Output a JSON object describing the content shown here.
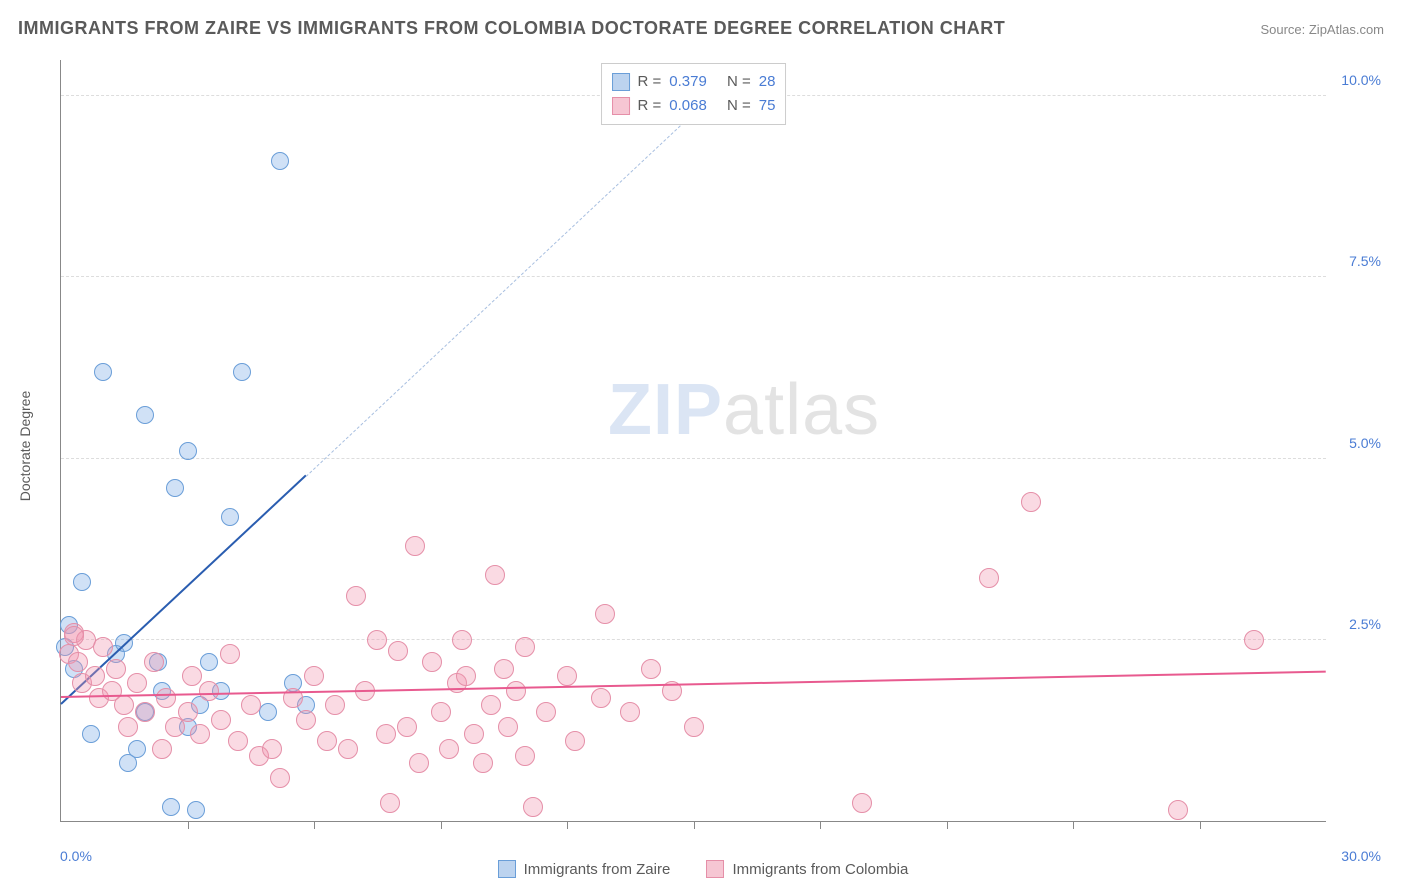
{
  "title": "IMMIGRANTS FROM ZAIRE VS IMMIGRANTS FROM COLOMBIA DOCTORATE DEGREE CORRELATION CHART",
  "source_label": "Source: ZipAtlas.com",
  "watermark": {
    "prefix": "ZIP",
    "suffix": "atlas"
  },
  "y_axis": {
    "label": "Doctorate Degree",
    "min": 0.0,
    "max": 10.5,
    "ticks": [
      {
        "v": 2.5,
        "label": "2.5%"
      },
      {
        "v": 5.0,
        "label": "5.0%"
      },
      {
        "v": 7.5,
        "label": "7.5%"
      },
      {
        "v": 10.0,
        "label": "10.0%"
      }
    ]
  },
  "x_axis": {
    "min": 0.0,
    "max": 30.0,
    "minor_ticks": [
      3,
      6,
      9,
      12,
      15,
      18,
      21,
      24,
      27
    ],
    "end_labels": {
      "left": "0.0%",
      "right": "30.0%"
    }
  },
  "series": [
    {
      "name": "Immigrants from Zaire",
      "fill": "rgba(120,170,230,0.35)",
      "stroke": "#6a9ed8",
      "swatch_fill": "#bcd3ef",
      "swatch_stroke": "#6a9ed8",
      "trend_color": "#2a5db0",
      "dash_color": "#a8bfe0",
      "r": 0.379,
      "n": 28,
      "marker_radius": 9,
      "trend": {
        "x1": 0.0,
        "y1": 1.6,
        "x2": 5.8,
        "y2": 4.75,
        "dash_to_x": 15.8,
        "dash_to_y": 10.2
      },
      "points": [
        [
          0.1,
          2.4
        ],
        [
          0.2,
          2.7
        ],
        [
          0.3,
          2.1
        ],
        [
          0.5,
          3.3
        ],
        [
          0.7,
          1.2
        ],
        [
          1.0,
          6.2
        ],
        [
          1.3,
          2.3
        ],
        [
          1.5,
          2.45
        ],
        [
          1.6,
          0.8
        ],
        [
          1.8,
          1.0
        ],
        [
          2.0,
          1.5
        ],
        [
          2.0,
          5.6
        ],
        [
          2.3,
          2.2
        ],
        [
          2.4,
          1.8
        ],
        [
          2.6,
          0.2
        ],
        [
          2.7,
          4.6
        ],
        [
          3.0,
          5.1
        ],
        [
          3.0,
          1.3
        ],
        [
          3.2,
          0.15
        ],
        [
          3.3,
          1.6
        ],
        [
          3.5,
          2.2
        ],
        [
          3.8,
          1.8
        ],
        [
          4.0,
          4.2
        ],
        [
          4.3,
          6.2
        ],
        [
          4.9,
          1.5
        ],
        [
          5.2,
          9.1
        ],
        [
          5.5,
          1.9
        ],
        [
          5.8,
          1.6
        ]
      ]
    },
    {
      "name": "Immigrants from Colombia",
      "fill": "rgba(240,150,175,0.35)",
      "stroke": "#e58fa8",
      "swatch_fill": "#f6c6d3",
      "swatch_stroke": "#e58fa8",
      "trend_color": "#e85a8f",
      "dash_color": "#f1b0c6",
      "r": 0.068,
      "n": 75,
      "marker_radius": 10,
      "trend": {
        "x1": 0.0,
        "y1": 1.7,
        "x2": 30.0,
        "y2": 2.05
      },
      "points": [
        [
          0.2,
          2.3
        ],
        [
          0.3,
          2.6
        ],
        [
          0.4,
          2.2
        ],
        [
          0.5,
          1.9
        ],
        [
          0.6,
          2.5
        ],
        [
          0.8,
          2.0
        ],
        [
          0.9,
          1.7
        ],
        [
          1.0,
          2.4
        ],
        [
          1.2,
          1.8
        ],
        [
          1.3,
          2.1
        ],
        [
          1.5,
          1.6
        ],
        [
          1.6,
          1.3
        ],
        [
          1.8,
          1.9
        ],
        [
          2.0,
          1.5
        ],
        [
          2.2,
          2.2
        ],
        [
          2.4,
          1.0
        ],
        [
          2.5,
          1.7
        ],
        [
          2.7,
          1.3
        ],
        [
          3.0,
          1.5
        ],
        [
          3.1,
          2.0
        ],
        [
          3.3,
          1.2
        ],
        [
          3.5,
          1.8
        ],
        [
          3.8,
          1.4
        ],
        [
          4.0,
          2.3
        ],
        [
          4.2,
          1.1
        ],
        [
          4.5,
          1.6
        ],
        [
          4.7,
          0.9
        ],
        [
          5.0,
          1.0
        ],
        [
          5.2,
          0.6
        ],
        [
          5.5,
          1.7
        ],
        [
          5.8,
          1.4
        ],
        [
          6.0,
          2.0
        ],
        [
          6.3,
          1.1
        ],
        [
          6.5,
          1.6
        ],
        [
          6.8,
          1.0
        ],
        [
          7.0,
          3.1
        ],
        [
          7.2,
          1.8
        ],
        [
          7.5,
          2.5
        ],
        [
          7.7,
          1.2
        ],
        [
          7.8,
          0.25
        ],
        [
          8.0,
          2.35
        ],
        [
          8.2,
          1.3
        ],
        [
          8.4,
          3.8
        ],
        [
          8.5,
          0.8
        ],
        [
          8.8,
          2.2
        ],
        [
          9.0,
          1.5
        ],
        [
          9.2,
          1.0
        ],
        [
          9.4,
          1.9
        ],
        [
          9.5,
          2.5
        ],
        [
          9.6,
          2.0
        ],
        [
          9.8,
          1.2
        ],
        [
          10.0,
          0.8
        ],
        [
          10.2,
          1.6
        ],
        [
          10.3,
          3.4
        ],
        [
          10.5,
          2.1
        ],
        [
          10.6,
          1.3
        ],
        [
          10.8,
          1.8
        ],
        [
          11.0,
          0.9
        ],
        [
          11.0,
          2.4
        ],
        [
          11.2,
          0.2
        ],
        [
          11.5,
          1.5
        ],
        [
          12.0,
          2.0
        ],
        [
          12.2,
          1.1
        ],
        [
          12.8,
          1.7
        ],
        [
          12.9,
          2.85
        ],
        [
          13.5,
          1.5
        ],
        [
          14.0,
          2.1
        ],
        [
          14.5,
          1.8
        ],
        [
          15.0,
          1.3
        ],
        [
          19.0,
          0.25
        ],
        [
          22.0,
          3.35
        ],
        [
          23.0,
          4.4
        ],
        [
          26.5,
          0.15
        ],
        [
          28.3,
          2.5
        ],
        [
          0.3,
          2.55
        ]
      ]
    }
  ],
  "legend_top": {
    "r_label": "R =",
    "n_label": "N ="
  },
  "colors": {
    "title": "#5a5a5a",
    "axis": "#888888",
    "tick_text": "#4a7cd4",
    "grid": "#dddddd",
    "background": "#ffffff"
  },
  "typography": {
    "title_fontsize": 18,
    "axis_label_fontsize": 14,
    "tick_fontsize": 14,
    "legend_fontsize": 15,
    "watermark_fontsize": 72
  }
}
